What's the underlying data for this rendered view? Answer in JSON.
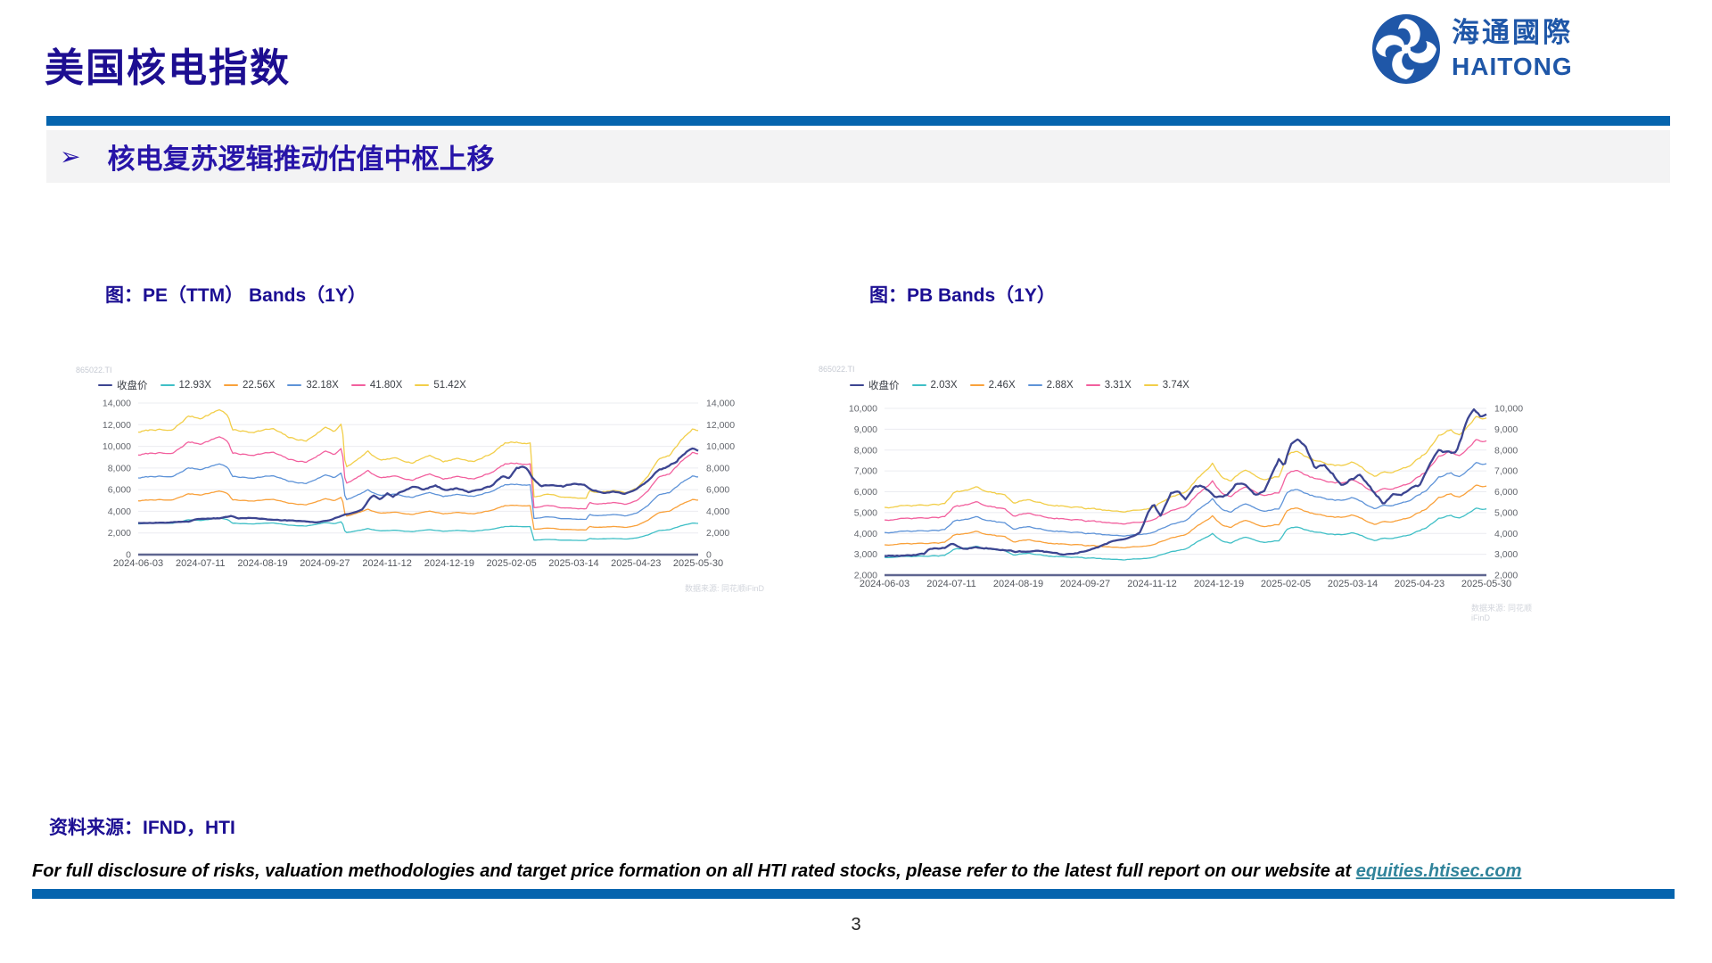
{
  "colors": {
    "accent": "#0564AE",
    "navy_text": "#1D0E91",
    "link": "#31849B",
    "logo_blue": "#1F57A8"
  },
  "header": {
    "title": "美国核电指数",
    "logo_cn": "海通國際",
    "logo_en": "HAITONG"
  },
  "banner": {
    "bullet": "➢",
    "text": "核电复苏逻辑推动估值中枢上移"
  },
  "footer": {
    "source": "资料来源：IFND，HTI",
    "disclaimer_prefix": "For full disclosure of risks, valuation methodologies and target price formation on all HTI rated stocks, please refer to the latest full report on our website at ",
    "disclaimer_link": "equities.htisec.com",
    "page_number": "3"
  },
  "chart_data": [
    {
      "type": "line",
      "title": "图：PE（TTM） Bands（1Y）",
      "watermark_code": "865022.TI",
      "watermark_source": "数据来源: 同花顺iFinD",
      "x_tick_labels": [
        "2024-06-03",
        "2024-07-11",
        "2024-08-19",
        "2024-09-27",
        "2024-11-12",
        "2024-12-19",
        "2025-02-05",
        "2025-03-14",
        "2025-04-23",
        "2025-05-30"
      ],
      "ylim": [
        0,
        14000
      ],
      "y_step": 2000,
      "grid": true,
      "legend_position": "top-left",
      "price": {
        "name": "收盘价",
        "color": "#3C4591",
        "points": [
          [
            0,
            2920
          ],
          [
            0.03,
            2940
          ],
          [
            0.06,
            2960
          ],
          [
            0.09,
            3060
          ],
          [
            0.105,
            3300
          ],
          [
            0.13,
            3320
          ],
          [
            0.15,
            3370
          ],
          [
            0.165,
            3560
          ],
          [
            0.18,
            3340
          ],
          [
            0.21,
            3390
          ],
          [
            0.24,
            3210
          ],
          [
            0.27,
            3150
          ],
          [
            0.3,
            3050
          ],
          [
            0.32,
            2990
          ],
          [
            0.345,
            3210
          ],
          [
            0.366,
            3650
          ],
          [
            0.385,
            3900
          ],
          [
            0.4,
            4150
          ],
          [
            0.412,
            5050
          ],
          [
            0.42,
            5480
          ],
          [
            0.432,
            5100
          ],
          [
            0.445,
            5650
          ],
          [
            0.455,
            5350
          ],
          [
            0.47,
            5850
          ],
          [
            0.49,
            6300
          ],
          [
            0.51,
            6000
          ],
          [
            0.53,
            6420
          ],
          [
            0.55,
            5900
          ],
          [
            0.57,
            6120
          ],
          [
            0.59,
            5780
          ],
          [
            0.61,
            6020
          ],
          [
            0.63,
            6320
          ],
          [
            0.65,
            7300
          ],
          [
            0.662,
            7050
          ],
          [
            0.675,
            7950
          ],
          [
            0.685,
            8100
          ],
          [
            0.695,
            7850
          ],
          [
            0.705,
            7000
          ],
          [
            0.72,
            6300
          ],
          [
            0.74,
            6520
          ],
          [
            0.76,
            6300
          ],
          [
            0.78,
            6620
          ],
          [
            0.795,
            6500
          ],
          [
            0.81,
            5950
          ],
          [
            0.83,
            5720
          ],
          [
            0.85,
            5830
          ],
          [
            0.87,
            5620
          ],
          [
            0.89,
            6100
          ],
          [
            0.91,
            6750
          ],
          [
            0.93,
            7820
          ],
          [
            0.945,
            8100
          ],
          [
            0.96,
            8600
          ],
          [
            0.975,
            9350
          ],
          [
            0.99,
            9900
          ],
          [
            1,
            9700
          ]
        ]
      },
      "bands": {
        "labels": [
          "12.93X",
          "22.56X",
          "32.18X",
          "41.80X",
          "51.42X"
        ],
        "multipliers": [
          12.93,
          22.56,
          32.18,
          41.8,
          51.42
        ],
        "colors": [
          "#3FBFC6",
          "#F9A13B",
          "#5E93D8",
          "#F2609E",
          "#F2CE49"
        ],
        "base_points": [
          [
            0,
            220
          ],
          [
            0.03,
            225
          ],
          [
            0.06,
            222
          ],
          [
            0.09,
            249
          ],
          [
            0.11,
            245
          ],
          [
            0.13,
            253
          ],
          [
            0.145,
            261
          ],
          [
            0.16,
            251
          ],
          [
            0.168,
            224
          ],
          [
            0.2,
            220
          ],
          [
            0.24,
            226
          ],
          [
            0.27,
            210
          ],
          [
            0.3,
            204
          ],
          [
            0.335,
            229
          ],
          [
            0.35,
            222
          ],
          [
            0.364,
            235
          ],
          [
            0.37,
            156
          ],
          [
            0.39,
            169
          ],
          [
            0.41,
            185
          ],
          [
            0.43,
            169
          ],
          [
            0.46,
            173
          ],
          [
            0.49,
            165
          ],
          [
            0.52,
            179
          ],
          [
            0.545,
            167
          ],
          [
            0.57,
            173
          ],
          [
            0.6,
            167
          ],
          [
            0.63,
            181
          ],
          [
            0.655,
            200
          ],
          [
            0.67,
            202
          ],
          [
            0.7,
            200
          ],
          [
            0.707,
            103
          ],
          [
            0.73,
            109
          ],
          [
            0.76,
            103
          ],
          [
            0.8,
            101
          ],
          [
            0.806,
            115
          ],
          [
            0.82,
            111
          ],
          [
            0.85,
            115
          ],
          [
            0.87,
            111
          ],
          [
            0.89,
            119
          ],
          [
            0.91,
            140
          ],
          [
            0.93,
            173
          ],
          [
            0.95,
            179
          ],
          [
            0.97,
            206
          ],
          [
            0.99,
            226
          ],
          [
            1,
            224
          ]
        ]
      }
    },
    {
      "type": "line",
      "title": "图：PB Bands（1Y）",
      "watermark_code": "865022.TI",
      "watermark_source": "数据来源: 同花顺iFinD",
      "x_tick_labels": [
        "2024-06-03",
        "2024-07-11",
        "2024-08-19",
        "2024-09-27",
        "2024-11-12",
        "2024-12-19",
        "2025-02-05",
        "2025-03-14",
        "2025-04-23",
        "2025-05-30"
      ],
      "ylim": [
        2000,
        10000
      ],
      "y_step": 1000,
      "grid": true,
      "legend_position": "top-left",
      "price": {
        "name": "收盘价",
        "color": "#3C4591",
        "points": [
          [
            0,
            2920
          ],
          [
            0.04,
            2940
          ],
          [
            0.065,
            3000
          ],
          [
            0.075,
            3260
          ],
          [
            0.1,
            3300
          ],
          [
            0.112,
            3520
          ],
          [
            0.13,
            3280
          ],
          [
            0.16,
            3330
          ],
          [
            0.19,
            3250
          ],
          [
            0.22,
            3120
          ],
          [
            0.25,
            3180
          ],
          [
            0.28,
            3050
          ],
          [
            0.3,
            2980
          ],
          [
            0.33,
            3120
          ],
          [
            0.36,
            3400
          ],
          [
            0.385,
            3680
          ],
          [
            0.41,
            3850
          ],
          [
            0.425,
            4100
          ],
          [
            0.437,
            4950
          ],
          [
            0.447,
            5450
          ],
          [
            0.458,
            4850
          ],
          [
            0.475,
            5950
          ],
          [
            0.488,
            6100
          ],
          [
            0.5,
            5620
          ],
          [
            0.515,
            6250
          ],
          [
            0.53,
            6300
          ],
          [
            0.55,
            5700
          ],
          [
            0.568,
            5800
          ],
          [
            0.585,
            6450
          ],
          [
            0.6,
            6300
          ],
          [
            0.615,
            5850
          ],
          [
            0.63,
            6020
          ],
          [
            0.645,
            6900
          ],
          [
            0.655,
            7600
          ],
          [
            0.665,
            7300
          ],
          [
            0.675,
            8300
          ],
          [
            0.686,
            8450
          ],
          [
            0.7,
            8200
          ],
          [
            0.715,
            7100
          ],
          [
            0.73,
            7250
          ],
          [
            0.745,
            6800
          ],
          [
            0.76,
            6300
          ],
          [
            0.775,
            6600
          ],
          [
            0.79,
            6800
          ],
          [
            0.802,
            6400
          ],
          [
            0.815,
            5900
          ],
          [
            0.83,
            5400
          ],
          [
            0.845,
            5900
          ],
          [
            0.86,
            5850
          ],
          [
            0.875,
            6200
          ],
          [
            0.89,
            6300
          ],
          [
            0.905,
            7200
          ],
          [
            0.92,
            7950
          ],
          [
            0.935,
            7900
          ],
          [
            0.95,
            7800
          ],
          [
            0.965,
            9200
          ],
          [
            0.978,
            9950
          ],
          [
            0.99,
            9600
          ],
          [
            1,
            9700
          ]
        ]
      },
      "bands": {
        "labels": [
          "2.03X",
          "2.46X",
          "2.88X",
          "3.31X",
          "3.74X"
        ],
        "multipliers": [
          2.03,
          2.46,
          2.88,
          3.31,
          3.74
        ],
        "colors": [
          "#3FBFC6",
          "#F9A13B",
          "#5E93D8",
          "#F2609E",
          "#F2CE49"
        ],
        "base_points": [
          [
            0,
            1404
          ],
          [
            0.04,
            1420
          ],
          [
            0.07,
            1430
          ],
          [
            0.1,
            1445
          ],
          [
            0.115,
            1600
          ],
          [
            0.14,
            1620
          ],
          [
            0.155,
            1660
          ],
          [
            0.175,
            1600
          ],
          [
            0.2,
            1555
          ],
          [
            0.215,
            1470
          ],
          [
            0.24,
            1500
          ],
          [
            0.27,
            1445
          ],
          [
            0.3,
            1420
          ],
          [
            0.33,
            1395
          ],
          [
            0.36,
            1370
          ],
          [
            0.39,
            1345
          ],
          [
            0.42,
            1360
          ],
          [
            0.44,
            1395
          ],
          [
            0.46,
            1475
          ],
          [
            0.48,
            1545
          ],
          [
            0.5,
            1600
          ],
          [
            0.52,
            1775
          ],
          [
            0.545,
            1965
          ],
          [
            0.56,
            1800
          ],
          [
            0.575,
            1745
          ],
          [
            0.6,
            1890
          ],
          [
            0.615,
            1800
          ],
          [
            0.635,
            1760
          ],
          [
            0.655,
            1800
          ],
          [
            0.67,
            2090
          ],
          [
            0.685,
            2125
          ],
          [
            0.7,
            2060
          ],
          [
            0.72,
            1985
          ],
          [
            0.74,
            1950
          ],
          [
            0.76,
            1930
          ],
          [
            0.775,
            1985
          ],
          [
            0.8,
            1875
          ],
          [
            0.815,
            1790
          ],
          [
            0.83,
            1850
          ],
          [
            0.85,
            1870
          ],
          [
            0.875,
            1950
          ],
          [
            0.9,
            2110
          ],
          [
            0.92,
            2325
          ],
          [
            0.94,
            2400
          ],
          [
            0.955,
            2330
          ],
          [
            0.97,
            2460
          ],
          [
            0.985,
            2570
          ],
          [
            1,
            2545
          ]
        ]
      }
    }
  ]
}
